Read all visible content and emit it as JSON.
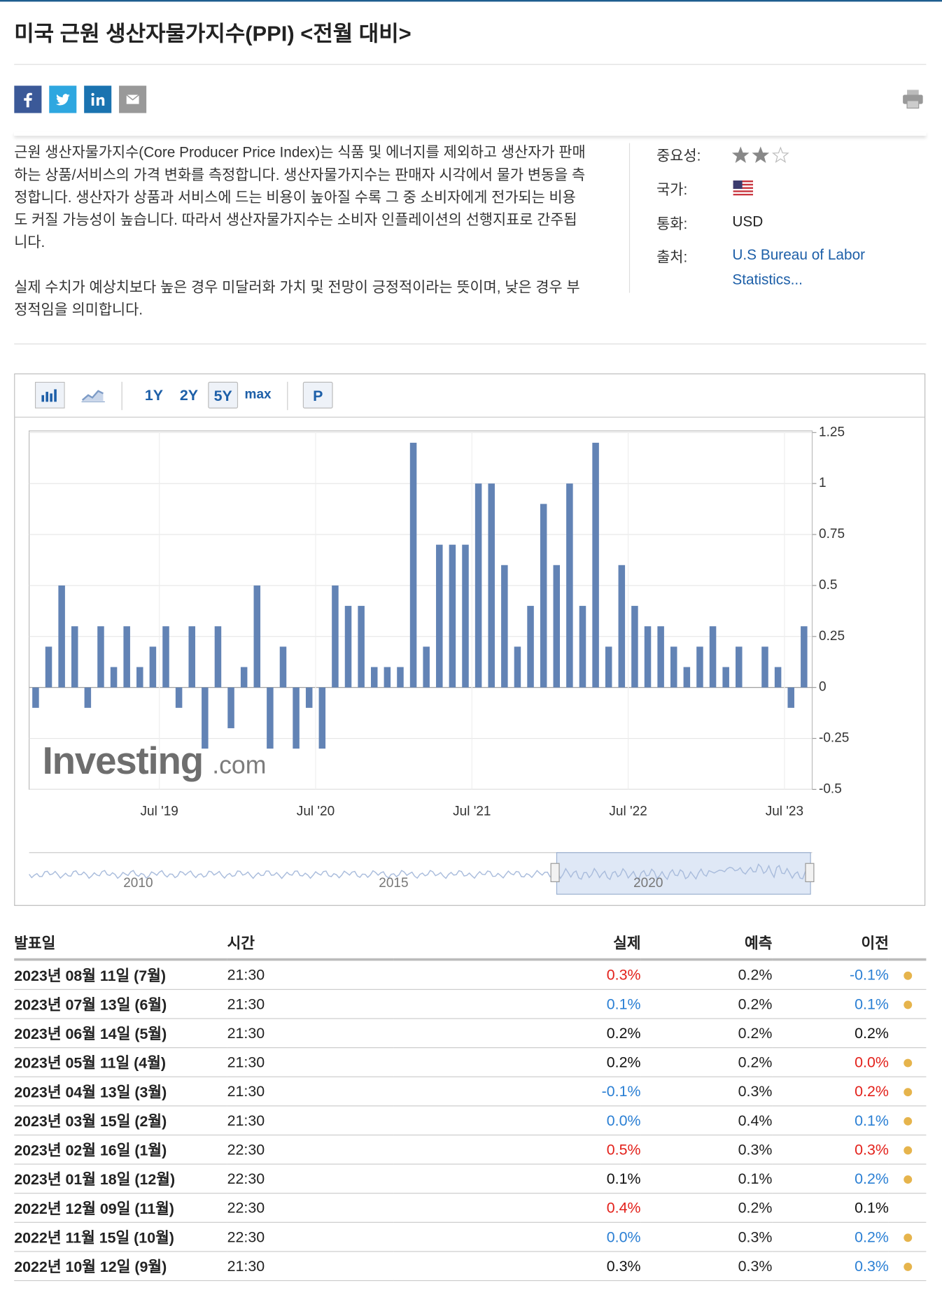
{
  "header": {
    "title": "미국 근원 생산자물가지수(PPI) <전월 대비>"
  },
  "description": [
    "근원 생산자물가지수(Core Producer Price Index)는 식품 및 에너지를 제외하고 생산자가 판매하는 상품/서비스의 가격 변화를 측정합니다. 생산자물가지수는 판매자 시각에서 물가 변동을 측정합니다. 생산자가 상품과 서비스에 드는 비용이 높아질 수록 그 중 소비자에게 전가되는 비용도 커질 가능성이 높습니다. 따라서 생산자물가지수는 소비자 인플레이션의 선행지표로 간주됩니다.",
    "실제 수치가 예상치보다 높은 경우 미달러화 가치 및 전망이 긍정적이라는 뜻이며, 낮은 경우 부정적임을 의미합니다."
  ],
  "info": {
    "importance_label": "중요성:",
    "importance": 2,
    "importance_max": 3,
    "country_label": "국가:",
    "currency_label": "통화:",
    "currency": "USD",
    "source_label": "출처:",
    "source": "U.S Bureau of Labor Statistics..."
  },
  "toolbar": {
    "ranges": [
      "1Y",
      "2Y",
      "5Y",
      "max"
    ],
    "selected": "5Y",
    "extra": "P"
  },
  "chart_data": {
    "type": "bar",
    "color": "#6283b5",
    "categories": [
      null,
      null,
      null,
      null,
      null,
      null,
      null,
      null,
      null,
      null,
      null,
      "Jul '19",
      null,
      null,
      null,
      null,
      null,
      null,
      null,
      null,
      null,
      null,
      null,
      "Jul '20",
      null,
      null,
      null,
      null,
      null,
      null,
      null,
      null,
      null,
      null,
      null,
      "Jul '21",
      null,
      null,
      null,
      null,
      null,
      null,
      null,
      null,
      null,
      null,
      null,
      "Jul '22",
      null,
      null,
      null,
      null,
      null,
      null,
      null,
      null,
      null,
      null,
      null,
      "Jul '23"
    ],
    "values": [
      -0.1,
      0.2,
      0.5,
      0.3,
      -0.1,
      0.3,
      0.1,
      0.3,
      0.1,
      0.2,
      0.3,
      -0.1,
      0.3,
      -0.3,
      0.3,
      -0.2,
      0.1,
      0.5,
      -0.3,
      0.2,
      -0.3,
      -0.1,
      -0.3,
      0.5,
      0.4,
      0.4,
      0.1,
      0.1,
      0.1,
      1.2,
      0.2,
      0.7,
      0.7,
      0.7,
      1.0,
      1.0,
      0.6,
      0.2,
      0.4,
      0.9,
      0.6,
      1.0,
      0.4,
      1.2,
      0.2,
      0.6,
      0.4,
      0.3,
      0.3,
      0.2,
      0.1,
      0.2,
      0.3,
      0.1,
      0.2,
      0.0,
      0.2,
      0.1,
      -0.1,
      0.3
    ],
    "ylim": [
      -0.5,
      1.25
    ],
    "yticks": [
      -0.5,
      -0.25,
      0,
      0.25,
      0.5,
      0.75,
      1,
      1.25
    ],
    "grid": true,
    "watermark_main": "Investing",
    "watermark_suffix": ".com",
    "navigator_labels": [
      "2010",
      "2015",
      "2020"
    ]
  },
  "table": {
    "columns": [
      "발표일",
      "시간",
      "실제",
      "예측",
      "이전"
    ],
    "rows": [
      {
        "date": "2023년 08월 11일 (7월)",
        "time": "21:30",
        "actual": "0.3%",
        "actual_color": "#e3211b",
        "forecast": "0.2%",
        "previous": "-0.1%",
        "previous_color": "#2a7fd4",
        "dot": true
      },
      {
        "date": "2023년 07월 13일 (6월)",
        "time": "21:30",
        "actual": "0.1%",
        "actual_color": "#2a7fd4",
        "forecast": "0.2%",
        "previous": "0.1%",
        "previous_color": "#2a7fd4",
        "dot": true
      },
      {
        "date": "2023년 06월 14일 (5월)",
        "time": "21:30",
        "actual": "0.2%",
        "actual_color": "#111111",
        "forecast": "0.2%",
        "previous": "0.2%",
        "previous_color": "#111111",
        "dot": false
      },
      {
        "date": "2023년 05월 11일 (4월)",
        "time": "21:30",
        "actual": "0.2%",
        "actual_color": "#111111",
        "forecast": "0.2%",
        "previous": "0.0%",
        "previous_color": "#e3211b",
        "dot": true
      },
      {
        "date": "2023년 04월 13일 (3월)",
        "time": "21:30",
        "actual": "-0.1%",
        "actual_color": "#2a7fd4",
        "forecast": "0.3%",
        "previous": "0.2%",
        "previous_color": "#e3211b",
        "dot": true
      },
      {
        "date": "2023년 03월 15일 (2월)",
        "time": "21:30",
        "actual": "0.0%",
        "actual_color": "#2a7fd4",
        "forecast": "0.4%",
        "previous": "0.1%",
        "previous_color": "#2a7fd4",
        "dot": true
      },
      {
        "date": "2023년 02월 16일 (1월)",
        "time": "22:30",
        "actual": "0.5%",
        "actual_color": "#e3211b",
        "forecast": "0.3%",
        "previous": "0.3%",
        "previous_color": "#e3211b",
        "dot": true
      },
      {
        "date": "2023년 01월 18일 (12월)",
        "time": "22:30",
        "actual": "0.1%",
        "actual_color": "#111111",
        "forecast": "0.1%",
        "previous": "0.2%",
        "previous_color": "#2a7fd4",
        "dot": true
      },
      {
        "date": "2022년 12월 09일 (11월)",
        "time": "22:30",
        "actual": "0.4%",
        "actual_color": "#e3211b",
        "forecast": "0.2%",
        "previous": "0.1%",
        "previous_color": "#111111",
        "dot": false
      },
      {
        "date": "2022년 11월 15일 (10월)",
        "time": "22:30",
        "actual": "0.0%",
        "actual_color": "#2a7fd4",
        "forecast": "0.3%",
        "previous": "0.2%",
        "previous_color": "#2a7fd4",
        "dot": true
      },
      {
        "date": "2022년 10월 12일 (9월)",
        "time": "21:30",
        "actual": "0.3%",
        "actual_color": "#111111",
        "forecast": "0.3%",
        "previous": "0.3%",
        "previous_color": "#2a7fd4",
        "dot": true
      }
    ]
  }
}
